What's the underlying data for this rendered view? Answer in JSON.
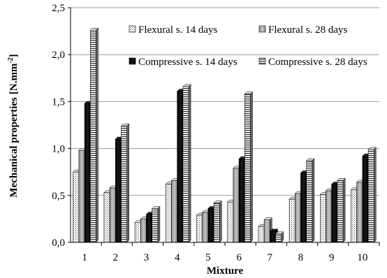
{
  "chart_data": {
    "type": "bar",
    "xlabel": "Mixture",
    "ylabel": "Mechanical properties",
    "ylabel_unit_prefix": "[N.mm",
    "ylabel_unit_exp": "-2",
    "ylabel_unit_suffix": "]",
    "categories": [
      "1",
      "2",
      "3",
      "4",
      "5",
      "6",
      "7",
      "8",
      "9",
      "10"
    ],
    "ylim": [
      0,
      2.5
    ],
    "yticks": [
      "0,0",
      "0,5",
      "1,0",
      "1,5",
      "2,0",
      "2,5"
    ],
    "grid": "horizontal",
    "legend_position": "top-right",
    "series": [
      {
        "name": "Flexural s. 14 days",
        "pattern": "dotted",
        "values": [
          0.75,
          0.53,
          0.21,
          0.62,
          0.29,
          0.43,
          0.17,
          0.46,
          0.51,
          0.56
        ]
      },
      {
        "name": "Flexural s. 28 days",
        "pattern": "gray",
        "values": [
          0.98,
          0.58,
          0.25,
          0.66,
          0.32,
          0.79,
          0.24,
          0.52,
          0.55,
          0.64
        ]
      },
      {
        "name": "Compressive s. 14 days",
        "pattern": "black",
        "values": [
          1.48,
          1.1,
          0.3,
          1.61,
          0.36,
          0.89,
          0.12,
          0.74,
          0.62,
          0.92
        ]
      },
      {
        "name": "Compressive s. 28 days",
        "pattern": "horizontal",
        "values": [
          2.26,
          1.24,
          0.36,
          1.66,
          0.42,
          1.58,
          0.09,
          0.87,
          0.66,
          0.99
        ]
      }
    ]
  }
}
